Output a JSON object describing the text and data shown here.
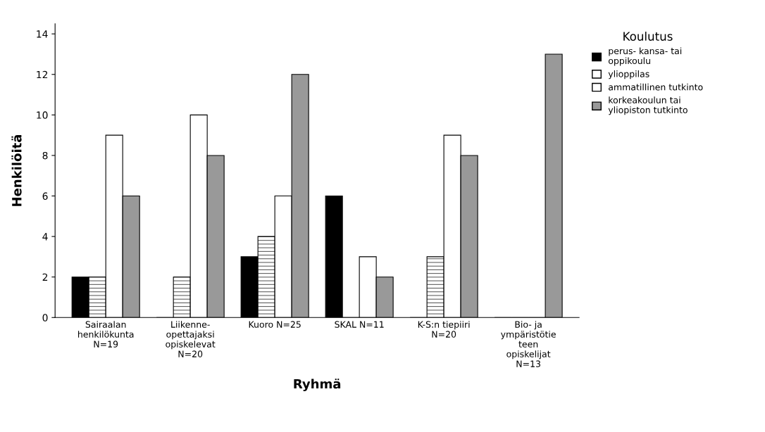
{
  "chart_data": {
    "type": "bar",
    "xlabel": "Ryhmä",
    "ylabel": "Henkilöitä",
    "legend_title": "Koulutus",
    "legend": "right",
    "grid": false,
    "categories": [
      "Sairaalan\nhenkilökunta\nN=19",
      "Liikenne-\nopettajaksi\nopiskelevat\nN=20",
      "Kuoro N=25",
      "SKAL N=11",
      "K-S:n tiepiiri\nN=20",
      "Bio- ja\nympäristötie\nteen\nopiskelijat\nN=13"
    ],
    "ylim": [
      0,
      14.5
    ],
    "yticks": [
      0,
      2,
      4,
      6,
      8,
      10,
      12,
      14
    ],
    "series": [
      {
        "name": "perus- kansa- tai\noppikoulu",
        "color": "#000000",
        "values": [
          2,
          0,
          3,
          6,
          0,
          0
        ]
      },
      {
        "name": "ylioppilas",
        "color": "#ffffff",
        "values": [
          2,
          2,
          4,
          0,
          3,
          0
        ]
      },
      {
        "name": "ammatillinen tutkinto",
        "color": "#ffffff",
        "values": [
          9,
          10,
          6,
          3,
          9,
          0
        ]
      },
      {
        "name": "korkeakoulun tai\nyliopiston tutkinto",
        "color": "#999999",
        "values": [
          6,
          8,
          12,
          2,
          8,
          13
        ]
      }
    ]
  }
}
